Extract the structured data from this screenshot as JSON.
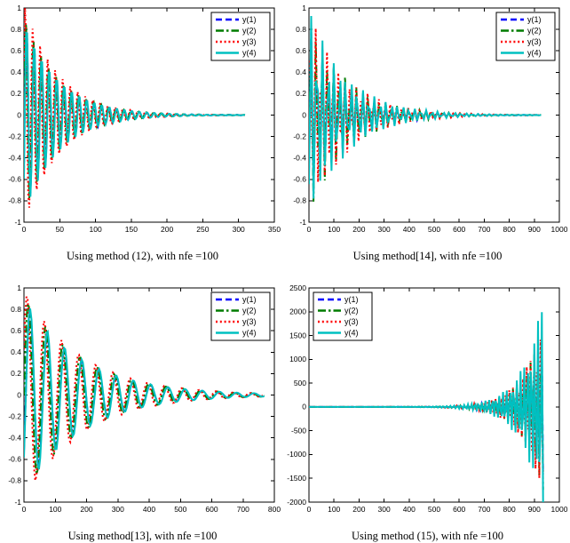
{
  "figure": {
    "background": "#ffffff",
    "axis_color": "#000000",
    "plot_bg": "#ffffff",
    "tick_label_color": "#000000",
    "legend_labels": [
      "y(1)",
      "y(2)",
      "y(3)",
      "y(4)"
    ],
    "series_colors": {
      "y1": "#0000ff",
      "y2": "#007c00",
      "y3": "#ff0000",
      "y4": "#00c0c0"
    },
    "line_style_dashes": {
      "dashed": "7,4",
      "dashdot": "9,3,2.5,3",
      "dotted": "2,2.8",
      "solid": ""
    }
  },
  "chart_data": [
    {
      "type": "line",
      "caption": "Using method (12), with nfe =100",
      "xlabel": "",
      "ylabel": "",
      "title": "",
      "grid": false,
      "xlim": [
        0,
        350
      ],
      "ylim": [
        -1,
        1
      ],
      "xticks": [
        0,
        50,
        100,
        150,
        200,
        250,
        300,
        350
      ],
      "xtick_labels": [
        "0",
        "50",
        "100",
        "150",
        "200",
        "250",
        "300",
        "350"
      ],
      "yticks": [
        -1,
        -0.8,
        -0.6,
        -0.4,
        -0.2,
        0,
        0.2,
        0.4,
        0.6,
        0.8,
        1
      ],
      "ytick_labels": [
        "-1",
        "-0.8",
        "-0.6",
        "-0.4",
        "-0.2",
        "0",
        "0.2",
        "0.4",
        "0.6",
        "0.8",
        "1"
      ],
      "legend_position": "top-right",
      "x_start": 0,
      "x_end": 310,
      "sample_step": 1.5,
      "description": "Damped oscillation: amplitude ~1 at x=0 decaying to ~0 by x=200, flat to x=310",
      "series": [
        {
          "name": "y(1)",
          "color": "#0000ff",
          "style": "dashed",
          "model": {
            "kind": "damped_sine",
            "amplitude": 0.88,
            "tau": -48,
            "period": 10.5,
            "phase": -0.65
          }
        },
        {
          "name": "y(2)",
          "color": "#007c00",
          "style": "dashdot",
          "model": {
            "kind": "damped_sine",
            "amplitude": 0.93,
            "tau": -48,
            "period": 10.5,
            "phase": 0.0
          }
        },
        {
          "name": "y(3)",
          "color": "#ff0000",
          "style": "dotted",
          "model": {
            "kind": "damped_sine",
            "amplitude": 1.05,
            "tau": -48,
            "period": 10.5,
            "phase": 0.5
          }
        },
        {
          "name": "y(4)",
          "color": "#00c0c0",
          "style": "solid",
          "model": {
            "kind": "damped_sine",
            "amplitude": 0.92,
            "tau": -48,
            "period": 10.5,
            "phase": -0.7
          }
        }
      ]
    },
    {
      "type": "line",
      "caption": "Using method[14], with nfe =100",
      "xlabel": "",
      "ylabel": "",
      "title": "",
      "grid": false,
      "xlim": [
        0,
        1000
      ],
      "ylim": [
        -1,
        1
      ],
      "xticks": [
        0,
        100,
        200,
        300,
        400,
        500,
        600,
        700,
        800,
        900,
        1000
      ],
      "xtick_labels": [
        "0",
        "100",
        "200",
        "300",
        "400",
        "500",
        "600",
        "700",
        "800",
        "900",
        "1000"
      ],
      "yticks": [
        -1,
        -0.8,
        -0.6,
        -0.4,
        -0.2,
        0,
        0.2,
        0.4,
        0.6,
        0.8,
        1
      ],
      "ytick_labels": [
        "-1",
        "-0.8",
        "-0.6",
        "-0.4",
        "-0.2",
        "0",
        "0.2",
        "0.4",
        "0.6",
        "0.8",
        "1"
      ],
      "legend_position": "top-right",
      "x_start": 0,
      "x_end": 930,
      "sample_step": 9,
      "description": "Coarsely-sampled damped oscillation: amplitude ~1 near x=0, ~0.25 at x=200, ~0 after x=500, flat line to x=930",
      "series": [
        {
          "name": "y(1)",
          "color": "#0000ff",
          "style": "dashed",
          "model": {
            "kind": "damped_sine",
            "amplitude": 0.88,
            "tau": -150,
            "period": 23,
            "phase": -0.65
          }
        },
        {
          "name": "y(2)",
          "color": "#007c00",
          "style": "dashdot",
          "model": {
            "kind": "damped_sine",
            "amplitude": 0.93,
            "tau": -150,
            "period": 23,
            "phase": 0.0
          }
        },
        {
          "name": "y(3)",
          "color": "#ff0000",
          "style": "dotted",
          "model": {
            "kind": "damped_sine",
            "amplitude": 0.97,
            "tau": -150,
            "period": 23,
            "phase": 0.55
          }
        },
        {
          "name": "y(4)",
          "color": "#00c0c0",
          "style": "solid",
          "model": {
            "kind": "damped_sine",
            "amplitude": 1.0,
            "tau": -150,
            "period": 23,
            "phase": -0.7
          }
        }
      ]
    },
    {
      "type": "line",
      "caption": "Using method[13], with nfe =100",
      "xlabel": "",
      "ylabel": "",
      "title": "",
      "grid": false,
      "xlim": [
        0,
        800
      ],
      "ylim": [
        -1,
        1
      ],
      "xticks": [
        0,
        100,
        200,
        300,
        400,
        500,
        600,
        700,
        800
      ],
      "xtick_labels": [
        "0",
        "100",
        "200",
        "300",
        "400",
        "500",
        "600",
        "700",
        "800"
      ],
      "yticks": [
        -1,
        -0.8,
        -0.6,
        -0.4,
        -0.2,
        0,
        0.2,
        0.4,
        0.6,
        0.8,
        1
      ],
      "ytick_labels": [
        "-1",
        "-0.8",
        "-0.6",
        "-0.4",
        "-0.2",
        "0",
        "0.2",
        "0.4",
        "0.6",
        "0.8",
        "1"
      ],
      "legend_position": "top-right",
      "x_start": 0,
      "x_end": 770,
      "sample_step": 4,
      "description": "Slowly damped oscillation, period ~55: amplitude ~0.9 at x=0, ~0.35 at x=200, ~0.1 at x=450, small ripple to x=770",
      "series": [
        {
          "name": "y(1)",
          "color": "#0000ff",
          "style": "dashed",
          "model": {
            "kind": "damped_sine",
            "amplitude": 0.86,
            "tau": -185,
            "period": 55,
            "phase": -0.65
          }
        },
        {
          "name": "y(2)",
          "color": "#007c00",
          "style": "dashdot",
          "model": {
            "kind": "damped_sine",
            "amplitude": 0.93,
            "tau": -185,
            "period": 55,
            "phase": 0.0
          }
        },
        {
          "name": "y(3)",
          "color": "#ff0000",
          "style": "dotted",
          "model": {
            "kind": "damped_sine",
            "amplitude": 0.98,
            "tau": -185,
            "period": 55,
            "phase": 0.45
          }
        },
        {
          "name": "y(4)",
          "color": "#00c0c0",
          "style": "solid",
          "model": {
            "kind": "damped_sine",
            "amplitude": 0.9,
            "tau": -185,
            "period": 55,
            "phase": -0.7
          }
        }
      ]
    },
    {
      "type": "line",
      "caption": "Using method (15), with nfe =100",
      "xlabel": "",
      "ylabel": "",
      "title": "",
      "grid": false,
      "xlim": [
        0,
        1000
      ],
      "ylim": [
        -2000,
        2500
      ],
      "xticks": [
        0,
        100,
        200,
        300,
        400,
        500,
        600,
        700,
        800,
        900,
        1000
      ],
      "xtick_labels": [
        "0",
        "100",
        "200",
        "300",
        "400",
        "500",
        "600",
        "700",
        "800",
        "900",
        "1000"
      ],
      "yticks": [
        -2000,
        -1500,
        -1000,
        -500,
        0,
        500,
        1000,
        1500,
        2000,
        2500
      ],
      "ytick_labels": [
        "-2000",
        "-1500",
        "-1000",
        "-500",
        "0",
        "500",
        "1000",
        "1500",
        "2000",
        "2500"
      ],
      "legend_position": "top-left",
      "x_start": 0,
      "x_end": 935,
      "sample_step": 5,
      "description": "Unstable solution: flat near 0 until ~x=350, oscillation grows exponentially to ~+2200/-2000 by x=930",
      "series": [
        {
          "name": "y(1)",
          "color": "#0000ff",
          "style": "dashed",
          "model": {
            "kind": "damped_sine",
            "amplitude": 0.013,
            "tau": 80,
            "period": 14,
            "phase": -0.65
          }
        },
        {
          "name": "y(2)",
          "color": "#007c00",
          "style": "dashdot",
          "model": {
            "kind": "damped_sine",
            "amplitude": 0.015,
            "tau": 80,
            "period": 14,
            "phase": 0.0
          }
        },
        {
          "name": "y(3)",
          "color": "#ff0000",
          "style": "dotted",
          "model": {
            "kind": "damped_sine",
            "amplitude": 0.016,
            "tau": 80,
            "period": 14,
            "phase": 0.55
          }
        },
        {
          "name": "y(4)",
          "color": "#00c0c0",
          "style": "solid",
          "model": {
            "kind": "damped_sine",
            "amplitude": 0.0195,
            "tau": 80,
            "period": 14,
            "phase": -0.7
          }
        }
      ]
    }
  ]
}
